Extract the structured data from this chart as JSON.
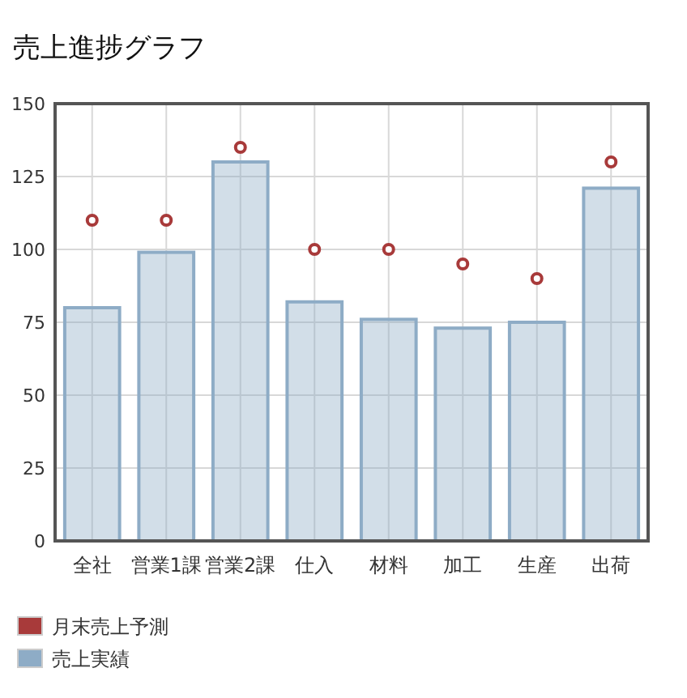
{
  "chart_data": {
    "type": "bar",
    "title": "売上進捗グラフ",
    "categories": [
      "全社",
      "営業1課",
      "営業2課",
      "仕入",
      "材料",
      "加工",
      "生産",
      "出荷"
    ],
    "series": [
      {
        "name": "月末売上予測",
        "type": "scatter",
        "color": "#a83a3a",
        "values": [
          110,
          110,
          135,
          100,
          100,
          95,
          90,
          130
        ]
      },
      {
        "name": "売上実績",
        "color": "#8eacc6",
        "values": [
          80,
          99,
          130,
          82,
          76,
          73,
          75,
          121
        ]
      }
    ],
    "ylim": [
      0,
      150
    ],
    "yticks": [
      0,
      25,
      50,
      75,
      100,
      125,
      150
    ],
    "grid": true,
    "legend": "bottom",
    "marker": "circle"
  }
}
